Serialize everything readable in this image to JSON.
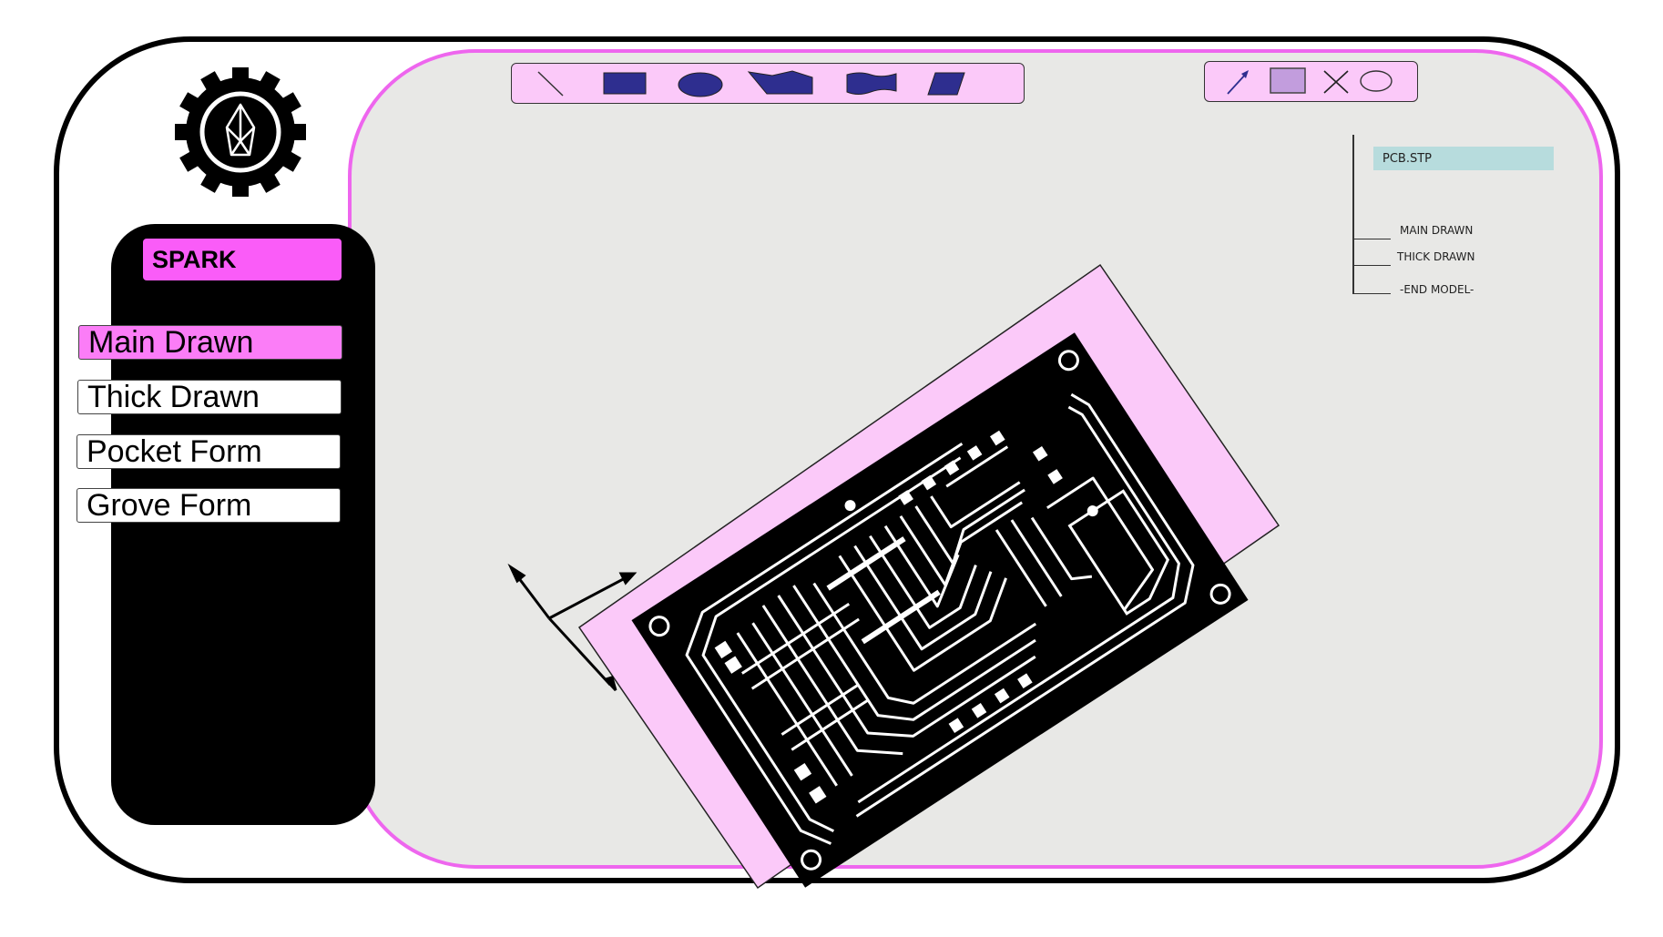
{
  "app": {
    "title": "SPARK"
  },
  "sidebar": {
    "items": [
      {
        "label": "Main Drawn",
        "active": true
      },
      {
        "label": "Thick Drawn",
        "active": false
      },
      {
        "label": "Pocket Form",
        "active": false
      },
      {
        "label": "Grove Form",
        "active": false
      }
    ]
  },
  "toolbar_shapes": {
    "tools": [
      "line-icon",
      "rectangle-icon",
      "ellipse-icon",
      "polygon-icon",
      "wave-rectangle-icon",
      "parallelogram-icon"
    ]
  },
  "toolbar_edit": {
    "tools": [
      "arrow-icon",
      "filled-square-icon",
      "cross-icon",
      "outline-ellipse-icon"
    ]
  },
  "model_tree": {
    "file": "PCB.STP",
    "nodes": [
      "MAIN DRAWN",
      "THICK DRAWN",
      "-END MODEL-"
    ]
  },
  "colors": {
    "accent_pink": "#fa5cf8",
    "frame_pink": "#ee66ee",
    "toolbar_bg": "#fbc9f9",
    "shape_blue": "#2e2e8f",
    "tree_file_bg": "#b7dcdd",
    "canvas_bg": "#e8e8e6"
  }
}
